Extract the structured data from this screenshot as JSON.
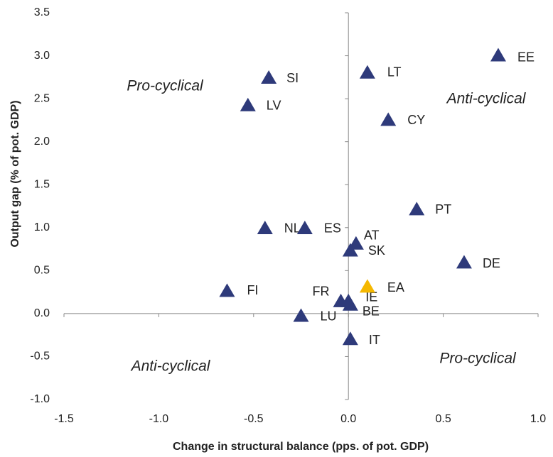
{
  "chart_data": {
    "type": "scatter",
    "xlabel": "Change in structural balance (pps. of pot. GDP)",
    "ylabel": "Output gap (% of pot. GDP)",
    "xlim": [
      -1.5,
      1.0
    ],
    "xticks": [
      -1.5,
      {
        "value": -1,
        "label": "-1.0"
      },
      -0.5,
      {
        "value": 0,
        "label": "0.0"
      },
      0.5,
      {
        "value": 1,
        "label": "1.0"
      }
    ],
    "ylim": [
      -1.0,
      3.5
    ],
    "yticks": [
      {
        "value": -1,
        "label": "-1.0"
      },
      -0.5,
      {
        "value": 0,
        "label": "0.0"
      },
      0.5,
      {
        "value": 1,
        "label": "1.0"
      },
      1.5,
      {
        "value": 2,
        "label": "2.0"
      },
      2.5,
      {
        "value": 3,
        "label": "3.0"
      },
      3.5
    ],
    "annotations": [
      "Pro-cyclical",
      "Anti-cyclical",
      "Anti-cyclical",
      "Pro-cyclical"
    ],
    "series": [
      {
        "color": "#2e3a7a",
        "labels": [
          "EE",
          "LT",
          "SI",
          "LV",
          "CY",
          "PT",
          "NL",
          "ES",
          "AT",
          "SK",
          "DE",
          "FI",
          "FR",
          "IE",
          "BE",
          "LU",
          "IT"
        ],
        "x": [
          0.79,
          0.1,
          -0.42,
          -0.53,
          0.21,
          0.36,
          -0.44,
          -0.23,
          0.04,
          0.01,
          0.61,
          -0.64,
          -0.04,
          0.0,
          0.01,
          -0.25,
          0.01
        ],
        "y": [
          3.0,
          2.8,
          2.74,
          2.42,
          2.25,
          1.21,
          0.99,
          0.99,
          0.81,
          0.73,
          0.59,
          0.26,
          0.14,
          0.14,
          0.1,
          -0.03,
          -0.3
        ]
      },
      {
        "color": "#f5b800",
        "labels": [
          "EA"
        ],
        "x": [
          0.1
        ],
        "y": [
          0.31
        ]
      }
    ]
  }
}
